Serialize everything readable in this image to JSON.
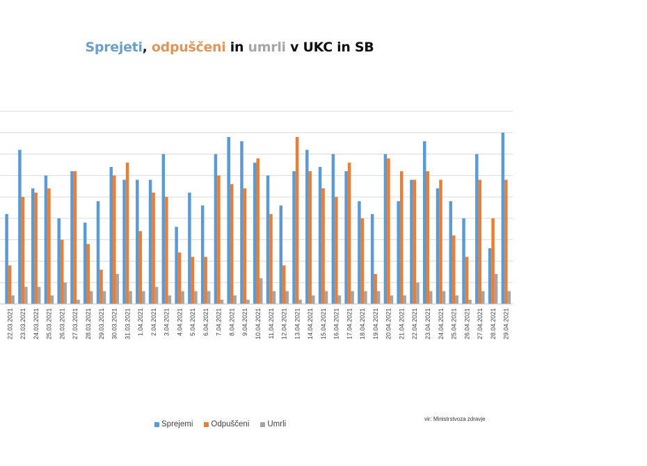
{
  "chart_data": {
    "type": "bar",
    "title_parts": [
      {
        "text": "Sprejeti",
        "color": "#6a9fcb"
      },
      {
        "text": ", ",
        "color": "#222222"
      },
      {
        "text": "odpuščeni",
        "color": "#e0955a"
      },
      {
        "text": " in ",
        "color": "#111111"
      },
      {
        "text": "umrli",
        "color": "#a6a6a6"
      },
      {
        "text": " v UKC in SB",
        "color": "#111111"
      }
    ],
    "xlabel": "",
    "ylabel": "",
    "ylim": [
      0,
      45
    ],
    "grid": true,
    "legend_position": "bottom",
    "source": "vir: Ministrstvoza zdravje",
    "categories": [
      "22.03.2021",
      "23.03.2021",
      "24.03.2021",
      "25.03.2021",
      "26.03.2021",
      "27.03.2021",
      "28.03.2021",
      "29.03.2021",
      "30.03.2021",
      "31.03.2021",
      "1.04.2021",
      "2.04.2021",
      "3.04.2021",
      "4.04.2021",
      "5.04.2021",
      "6.04.2021",
      "7.04.2021",
      "8.04.2021",
      "9.04.2021",
      "10.04.2021",
      "11.04.2021",
      "12.04.2021",
      "13.04.2021",
      "14.04.2021",
      "15.04.2021",
      "16.04.2021",
      "17.04.2021",
      "18.04.2021",
      "19.04.2021",
      "20.04.2021",
      "21.04.2021",
      "22.04.2021",
      "23.04.2021",
      "24.04.2021",
      "25.04.2021",
      "26.04.2021",
      "27.04.2021",
      "28.04.2021",
      "29.04.2021"
    ],
    "series": [
      {
        "name": "Sprejemi",
        "color": "#5b9bd5",
        "values": [
          21,
          36,
          27,
          30,
          20,
          31,
          19,
          24,
          32,
          29,
          29,
          29,
          35,
          18,
          26,
          23,
          35,
          39,
          38,
          33,
          30,
          23,
          31,
          36,
          32,
          35,
          31,
          24,
          21,
          35,
          24,
          29,
          38,
          27,
          24,
          20,
          35,
          13,
          40
        ]
      },
      {
        "name": "Odpuščeni",
        "color": "#ed7d31",
        "values": [
          9,
          25,
          26,
          27,
          15,
          31,
          14,
          8,
          30,
          33,
          17,
          26,
          25,
          12,
          11,
          11,
          30,
          28,
          27,
          34,
          21,
          9,
          39,
          31,
          27,
          25,
          33,
          20,
          7,
          34,
          31,
          29,
          31,
          29,
          16,
          11,
          29,
          20,
          29
        ]
      },
      {
        "name": "Umrli",
        "color": "#a5a5a5",
        "values": [
          2,
          4,
          4,
          2,
          5,
          1,
          3,
          3,
          7,
          3,
          3,
          4,
          2,
          3,
          3,
          3,
          1,
          2,
          1,
          6,
          3,
          3,
          1,
          2,
          3,
          2,
          3,
          3,
          3,
          2,
          2,
          5,
          3,
          3,
          2,
          1,
          3,
          7,
          3
        ]
      }
    ]
  }
}
